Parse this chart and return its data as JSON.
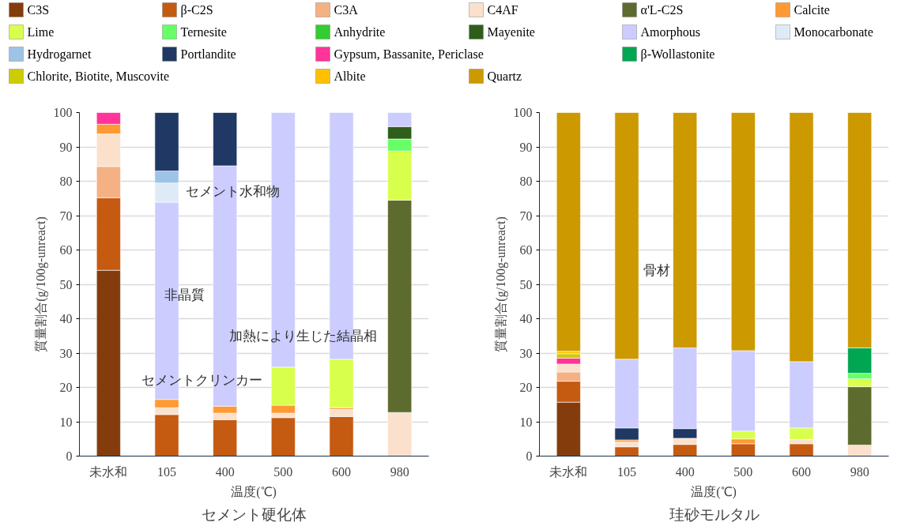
{
  "chart_data": [
    {
      "type": "bar",
      "stacked": true,
      "title": "セメント硬化体",
      "xlabel": "温度(℃)",
      "ylabel": "質量割合(g/100g-unreact)",
      "categories": [
        "未水和",
        "105",
        "400",
        "500",
        "600",
        "980"
      ],
      "ylim": [
        0,
        100
      ],
      "yticks": [
        0,
        10,
        20,
        30,
        40,
        50,
        60,
        70,
        80,
        90,
        100
      ],
      "grid": "y",
      "legend": "top",
      "series": [
        {
          "name": "C3S",
          "color": "#843c0c",
          "values": [
            54.1,
            null,
            null,
            null,
            null,
            null
          ]
        },
        {
          "name": "β-C2S",
          "color": "#c55a11",
          "values": [
            21.1,
            12.1,
            10.6,
            11.2,
            11.5,
            null
          ]
        },
        {
          "name": "C3A",
          "color": "#f4b183",
          "values": [
            9.1,
            null,
            null,
            null,
            null,
            null
          ]
        },
        {
          "name": "C4AF",
          "color": "#fbe0cc",
          "values": [
            9.5,
            2.0,
            1.9,
            1.3,
            2.1,
            12.7
          ]
        },
        {
          "name": "α'L-C2S",
          "color": "#5e6b2e",
          "values": [
            null,
            null,
            null,
            null,
            null,
            61.8
          ]
        },
        {
          "name": "Calcite",
          "color": "#ff9933",
          "values": [
            2.8,
            2.4,
            2.0,
            2.3,
            0.5,
            null
          ]
        },
        {
          "name": "Lime",
          "color": "#d9ff4d",
          "values": [
            null,
            null,
            null,
            11.1,
            14.1,
            14.3
          ]
        },
        {
          "name": "Ternesite",
          "color": "#66ff66",
          "values": [
            null,
            null,
            null,
            null,
            null,
            3.5
          ]
        },
        {
          "name": "Anhydrite",
          "color": "#33cc33",
          "values": [
            null,
            null,
            null,
            null,
            null,
            null
          ]
        },
        {
          "name": "Mayenite",
          "color": "#2e5e1a",
          "values": [
            null,
            null,
            null,
            null,
            null,
            3.6
          ]
        },
        {
          "name": "Amorphous",
          "color": "#ccccff",
          "values": [
            null,
            57.4,
            70,
            74.1,
            71.8,
            4.1
          ]
        },
        {
          "name": "Monocarbonate",
          "color": "#deebf7",
          "values": [
            null,
            5.6,
            null,
            null,
            null,
            null
          ]
        },
        {
          "name": "Hydrogarnet",
          "color": "#9dc3e6",
          "values": [
            null,
            3.5,
            null,
            null,
            null,
            null
          ]
        },
        {
          "name": "Portlandite",
          "color": "#1f3864",
          "values": [
            null,
            17,
            15.5,
            null,
            null,
            null
          ]
        },
        {
          "name": "Gypsum, Bassanite, Periclase",
          "color": "#ff3399",
          "values": [
            3.4,
            null,
            null,
            null,
            null,
            null
          ]
        }
      ],
      "annotations": [
        "セメント水和物",
        "非晶質",
        "加熱により生じた結晶相",
        "セメントクリンカー"
      ]
    },
    {
      "type": "bar",
      "stacked": true,
      "title": "珪砂モルタル",
      "xlabel": "温度(℃)",
      "ylabel": "質量割合(g/100g-unreact)",
      "categories": [
        "未水和",
        "105",
        "400",
        "500",
        "600",
        "980"
      ],
      "ylim": [
        0,
        100
      ],
      "yticks": [
        0,
        10,
        20,
        30,
        40,
        50,
        60,
        70,
        80,
        90,
        100
      ],
      "grid": "y",
      "legend": "top",
      "series": [
        {
          "name": "C3S",
          "color": "#843c0c",
          "values": [
            15.7,
            null,
            null,
            null,
            null,
            null
          ]
        },
        {
          "name": "β-C2S",
          "color": "#c55a11",
          "values": [
            6.1,
            2.7,
            3.4,
            3.6,
            3.6,
            null
          ]
        },
        {
          "name": "C3A",
          "color": "#f4b183",
          "values": [
            2.7,
            null,
            null,
            null,
            null,
            null
          ]
        },
        {
          "name": "C4AF",
          "color": "#fbe0cc",
          "values": [
            2.3,
            1.4,
            1.8,
            null,
            1.2,
            3.2
          ]
        },
        {
          "name": "α'L-C2S",
          "color": "#5e6b2e",
          "values": [
            null,
            null,
            null,
            null,
            null,
            17
          ]
        },
        {
          "name": "Calcite",
          "color": "#ff9933",
          "values": [
            null,
            0.6,
            null,
            1.4,
            null,
            null
          ]
        },
        {
          "name": "Lime",
          "color": "#d9ff4d",
          "values": [
            null,
            null,
            null,
            2.3,
            3.4,
            2.3
          ]
        },
        {
          "name": "Ternesite",
          "color": "#66ff66",
          "values": [
            null,
            null,
            null,
            null,
            null,
            1.6
          ]
        },
        {
          "name": "β-Wollastonite",
          "color": "#00a651",
          "values": [
            null,
            null,
            null,
            null,
            null,
            7.4
          ]
        },
        {
          "name": "Gypsum, Bassanite, Periclase",
          "color": "#ff3399",
          "values": [
            1.7,
            null,
            null,
            null,
            null,
            null
          ]
        },
        {
          "name": "Chlorite,  Biotite, Muscovite",
          "color": "#cccc00",
          "values": [
            1.3,
            null,
            null,
            null,
            null,
            null
          ]
        },
        {
          "name": "Albite",
          "color": "#ffc000",
          "values": [
            0.7,
            null,
            null,
            null,
            null,
            null
          ]
        },
        {
          "name": "Portlandite",
          "color": "#1f3864",
          "values": [
            null,
            3.5,
            2.8,
            null,
            null,
            null
          ]
        },
        {
          "name": "Amorphous",
          "color": "#ccccff",
          "values": [
            null,
            20,
            23.5,
            23.4,
            19.3,
            null
          ]
        },
        {
          "name": "Quartz",
          "color": "#cc9900",
          "values": [
            69.5,
            71.8,
            68.5,
            69.3,
            72.5,
            68.5
          ]
        }
      ],
      "annotations": [
        "骨材"
      ]
    }
  ]
}
